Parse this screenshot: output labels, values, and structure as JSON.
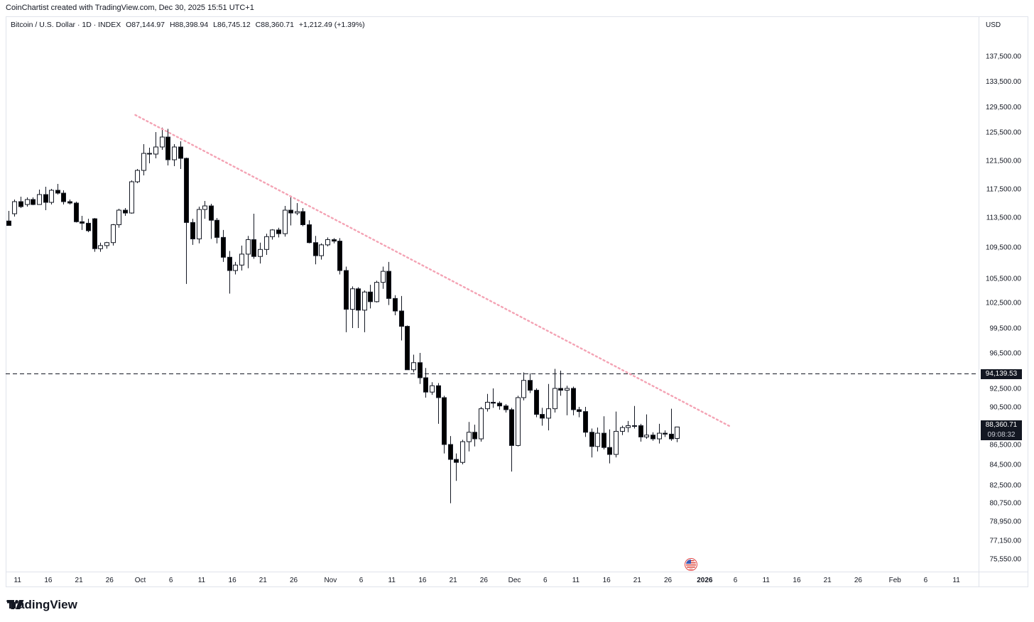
{
  "header": {
    "attribution": "CoinChartist created with TradingView.com, Dec 30, 2025 15:51 UTC+1",
    "symbol": "Bitcoin / U.S. Dollar · 1D · INDEX",
    "open": "O87,144.97",
    "high": "H88,398.94",
    "low": "L86,745.12",
    "close": "C88,360.71",
    "change": "+1,212.49 (+1.39%)"
  },
  "price_axis": {
    "currency": "USD"
  },
  "tags": {
    "resistance_label": "94,139.53",
    "last_price_label": "88,360.71",
    "countdown_label": "09:08:32"
  },
  "brand": {
    "name": "TradingView"
  },
  "icons": {
    "logo": "tradingview-logo-icon",
    "event": "us-flag-icon"
  },
  "colors": {
    "bull_fill": "#ffffff",
    "bear_fill": "#000000",
    "trendline": "#f4a3b4",
    "grid": "#e0e3eb"
  },
  "chart_data": {
    "type": "candlestick",
    "interval": "1D",
    "ylim": [
      74500,
      140500
    ],
    "y_ticks": [
      137500,
      133500,
      129500,
      125500,
      121500,
      117500,
      113500,
      109500,
      105500,
      102500,
      99500,
      96500,
      92500,
      90500,
      86500,
      84500,
      82500,
      80750,
      78950,
      77150,
      75550
    ],
    "y_tick_labels": [
      "137,500.00",
      "133,500.00",
      "129,500.00",
      "125,500.00",
      "121,500.00",
      "117,500.00",
      "113,500.00",
      "109,500.00",
      "105,500.00",
      "102,500.00",
      "99,500.00",
      "96,500.00",
      "92,500.00",
      "90,500.00",
      "86,500.00",
      "84,500.00",
      "82,500.00",
      "80,750.00",
      "78,950.00",
      "77,150.00",
      "75,550.00"
    ],
    "x_labels": [
      "11",
      "16",
      "21",
      "26",
      "Oct",
      "6",
      "11",
      "16",
      "21",
      "26",
      "Nov",
      "6",
      "11",
      "16",
      "21",
      "26",
      "Dec",
      "6",
      "11",
      "16",
      "21",
      "26",
      "2026",
      "6",
      "11",
      "16",
      "21",
      "26",
      "Feb",
      "6",
      "11"
    ],
    "x_start_date": "2025-09-11",
    "last_date": "2025-12-30",
    "candles": [
      {
        "o": 113000,
        "h": 114400,
        "l": 112500,
        "c": 112400
      },
      {
        "o": 114000,
        "h": 116000,
        "l": 113600,
        "c": 115700
      },
      {
        "o": 115700,
        "h": 116400,
        "l": 114800,
        "c": 115000
      },
      {
        "o": 115300,
        "h": 116300,
        "l": 115000,
        "c": 116000
      },
      {
        "o": 116000,
        "h": 116300,
        "l": 115200,
        "c": 115300
      },
      {
        "o": 115300,
        "h": 117400,
        "l": 115300,
        "c": 116700
      },
      {
        "o": 116700,
        "h": 117800,
        "l": 114500,
        "c": 115600
      },
      {
        "o": 115600,
        "h": 117500,
        "l": 115300,
        "c": 117300
      },
      {
        "o": 117300,
        "h": 118200,
        "l": 116700,
        "c": 116900
      },
      {
        "o": 116900,
        "h": 117300,
        "l": 115300,
        "c": 115700
      },
      {
        "o": 115700,
        "h": 116000,
        "l": 115300,
        "c": 115500
      },
      {
        "o": 115500,
        "h": 115700,
        "l": 112800,
        "c": 112900
      },
      {
        "o": 112900,
        "h": 113700,
        "l": 111800,
        "c": 112700
      },
      {
        "o": 112700,
        "h": 113300,
        "l": 111500,
        "c": 111700
      },
      {
        "o": 113300,
        "h": 113400,
        "l": 108900,
        "c": 109300
      },
      {
        "o": 109300,
        "h": 110100,
        "l": 108900,
        "c": 109700
      },
      {
        "o": 109700,
        "h": 110200,
        "l": 109300,
        "c": 110100
      },
      {
        "o": 110100,
        "h": 112600,
        "l": 109700,
        "c": 112500
      },
      {
        "o": 112500,
        "h": 114700,
        "l": 112100,
        "c": 114500
      },
      {
        "o": 114500,
        "h": 114800,
        "l": 113700,
        "c": 114100
      },
      {
        "o": 114100,
        "h": 118700,
        "l": 114000,
        "c": 118500
      },
      {
        "o": 118500,
        "h": 120300,
        "l": 118300,
        "c": 120100
      },
      {
        "o": 120100,
        "h": 123800,
        "l": 119400,
        "c": 122500
      },
      {
        "o": 122500,
        "h": 123300,
        "l": 121100,
        "c": 122400
      },
      {
        "o": 122400,
        "h": 125500,
        "l": 121800,
        "c": 123400
      },
      {
        "o": 123400,
        "h": 126200,
        "l": 123000,
        "c": 124800
      },
      {
        "o": 124800,
        "h": 126000,
        "l": 120800,
        "c": 121600
      },
      {
        "o": 121600,
        "h": 123800,
        "l": 120700,
        "c": 123400
      },
      {
        "o": 123400,
        "h": 124200,
        "l": 120300,
        "c": 121800
      },
      {
        "o": 121800,
        "h": 121900,
        "l": 104800,
        "c": 112800
      },
      {
        "o": 112800,
        "h": 113300,
        "l": 109800,
        "c": 110600
      },
      {
        "o": 110600,
        "h": 115000,
        "l": 110000,
        "c": 114600
      },
      {
        "o": 114600,
        "h": 115800,
        "l": 113300,
        "c": 115100
      },
      {
        "o": 115100,
        "h": 115400,
        "l": 110600,
        "c": 113100
      },
      {
        "o": 113100,
        "h": 113400,
        "l": 110000,
        "c": 110800
      },
      {
        "o": 110800,
        "h": 111800,
        "l": 107600,
        "c": 108200
      },
      {
        "o": 108200,
        "h": 109000,
        "l": 103600,
        "c": 106500
      },
      {
        "o": 106500,
        "h": 107600,
        "l": 106000,
        "c": 107200
      },
      {
        "o": 107200,
        "h": 109700,
        "l": 106500,
        "c": 108600
      },
      {
        "o": 108600,
        "h": 111000,
        "l": 106800,
        "c": 110500
      },
      {
        "o": 110500,
        "h": 114000,
        "l": 108000,
        "c": 108300
      },
      {
        "o": 108300,
        "h": 110100,
        "l": 107400,
        "c": 109200
      },
      {
        "o": 109200,
        "h": 111300,
        "l": 108500,
        "c": 110900
      },
      {
        "o": 110900,
        "h": 111900,
        "l": 110500,
        "c": 111800
      },
      {
        "o": 111800,
        "h": 112100,
        "l": 110800,
        "c": 111300
      },
      {
        "o": 111300,
        "h": 115100,
        "l": 110900,
        "c": 114500
      },
      {
        "o": 114500,
        "h": 116400,
        "l": 112400,
        "c": 114100
      },
      {
        "o": 114100,
        "h": 115500,
        "l": 113800,
        "c": 114300
      },
      {
        "o": 114300,
        "h": 114800,
        "l": 112300,
        "c": 112500
      },
      {
        "o": 112500,
        "h": 113100,
        "l": 110000,
        "c": 110100
      },
      {
        "o": 110100,
        "h": 111000,
        "l": 107300,
        "c": 108400
      },
      {
        "o": 108400,
        "h": 110000,
        "l": 107900,
        "c": 109800
      },
      {
        "o": 109800,
        "h": 110800,
        "l": 109600,
        "c": 110500
      },
      {
        "o": 110500,
        "h": 110700,
        "l": 110000,
        "c": 110300
      },
      {
        "o": 110300,
        "h": 110700,
        "l": 106000,
        "c": 106500
      },
      {
        "o": 106500,
        "h": 107000,
        "l": 99000,
        "c": 101700
      },
      {
        "o": 101700,
        "h": 104500,
        "l": 99500,
        "c": 104200
      },
      {
        "o": 104200,
        "h": 104400,
        "l": 99500,
        "c": 101600
      },
      {
        "o": 101600,
        "h": 104000,
        "l": 99000,
        "c": 103800
      },
      {
        "o": 103800,
        "h": 104700,
        "l": 101800,
        "c": 102600
      },
      {
        "o": 102600,
        "h": 105200,
        "l": 102500,
        "c": 105000
      },
      {
        "o": 105000,
        "h": 107000,
        "l": 104200,
        "c": 106400
      },
      {
        "o": 106400,
        "h": 107600,
        "l": 102200,
        "c": 103000
      },
      {
        "o": 103000,
        "h": 103400,
        "l": 101000,
        "c": 101500
      },
      {
        "o": 101500,
        "h": 103300,
        "l": 98000,
        "c": 99700
      },
      {
        "o": 99700,
        "h": 99800,
        "l": 94700,
        "c": 94600
      },
      {
        "o": 94600,
        "h": 96300,
        "l": 94300,
        "c": 95400
      },
      {
        "o": 95400,
        "h": 96500,
        "l": 93000,
        "c": 93700
      },
      {
        "o": 93700,
        "h": 94800,
        "l": 91500,
        "c": 92100
      },
      {
        "o": 92100,
        "h": 93200,
        "l": 91800,
        "c": 92800
      },
      {
        "o": 92800,
        "h": 93100,
        "l": 88700,
        "c": 91500
      },
      {
        "o": 91500,
        "h": 91700,
        "l": 85600,
        "c": 86500
      },
      {
        "o": 86500,
        "h": 87400,
        "l": 80700,
        "c": 85000
      },
      {
        "o": 85000,
        "h": 85600,
        "l": 82900,
        "c": 84700
      },
      {
        "o": 84700,
        "h": 87000,
        "l": 84500,
        "c": 86800
      },
      {
        "o": 86800,
        "h": 88900,
        "l": 85800,
        "c": 87800
      },
      {
        "o": 87800,
        "h": 88600,
        "l": 86300,
        "c": 87100
      },
      {
        "o": 87100,
        "h": 90500,
        "l": 86800,
        "c": 90300
      },
      {
        "o": 90300,
        "h": 91900,
        "l": 90000,
        "c": 91000
      },
      {
        "o": 91000,
        "h": 92500,
        "l": 90400,
        "c": 90900
      },
      {
        "o": 90900,
        "h": 91100,
        "l": 90200,
        "c": 90600
      },
      {
        "o": 90600,
        "h": 90800,
        "l": 89900,
        "c": 90200
      },
      {
        "o": 90200,
        "h": 90400,
        "l": 83800,
        "c": 86400
      },
      {
        "o": 86400,
        "h": 91700,
        "l": 86300,
        "c": 91500
      },
      {
        "o": 91500,
        "h": 94300,
        "l": 91200,
        "c": 93400
      },
      {
        "o": 93400,
        "h": 94200,
        "l": 92000,
        "c": 92300
      },
      {
        "o": 92300,
        "h": 92500,
        "l": 89400,
        "c": 89700
      },
      {
        "o": 89700,
        "h": 90400,
        "l": 88500,
        "c": 89300
      },
      {
        "o": 89300,
        "h": 93000,
        "l": 88000,
        "c": 90300
      },
      {
        "o": 90300,
        "h": 94700,
        "l": 89900,
        "c": 92500
      },
      {
        "o": 92500,
        "h": 94500,
        "l": 91700,
        "c": 92300
      },
      {
        "o": 92300,
        "h": 92800,
        "l": 89600,
        "c": 92500
      },
      {
        "o": 92500,
        "h": 92700,
        "l": 89600,
        "c": 90200
      },
      {
        "o": 90200,
        "h": 90500,
        "l": 89400,
        "c": 90000
      },
      {
        "o": 90000,
        "h": 90500,
        "l": 87300,
        "c": 87800
      },
      {
        "o": 87800,
        "h": 88200,
        "l": 85200,
        "c": 86300
      },
      {
        "o": 86300,
        "h": 88300,
        "l": 85800,
        "c": 87700
      },
      {
        "o": 87700,
        "h": 89500,
        "l": 86000,
        "c": 86200
      },
      {
        "o": 86200,
        "h": 88100,
        "l": 84600,
        "c": 85500
      },
      {
        "o": 85500,
        "h": 90000,
        "l": 85200,
        "c": 87900
      },
      {
        "o": 87900,
        "h": 88500,
        "l": 87500,
        "c": 88300
      },
      {
        "o": 88300,
        "h": 89000,
        "l": 87800,
        "c": 88500
      },
      {
        "o": 88500,
        "h": 90600,
        "l": 88200,
        "c": 88500
      },
      {
        "o": 88500,
        "h": 88700,
        "l": 86800,
        "c": 87300
      },
      {
        "o": 87300,
        "h": 89700,
        "l": 87100,
        "c": 87500
      },
      {
        "o": 87500,
        "h": 87800,
        "l": 86900,
        "c": 87100
      },
      {
        "o": 87100,
        "h": 88700,
        "l": 86600,
        "c": 87700
      },
      {
        "o": 87700,
        "h": 88000,
        "l": 87300,
        "c": 87600
      },
      {
        "o": 87600,
        "h": 90300,
        "l": 86900,
        "c": 87100
      },
      {
        "o": 87144.97,
        "h": 88398.94,
        "l": 86745.12,
        "c": 88360.71
      }
    ],
    "lines": [
      {
        "type": "horizontal",
        "style": "dashed",
        "value": 94139.53
      },
      {
        "type": "trendline",
        "style": "dotted",
        "from": {
          "date": "2025-10-01",
          "value": 128200
        },
        "to": {
          "date": "2026-01-06",
          "value": 88400
        }
      }
    ]
  }
}
